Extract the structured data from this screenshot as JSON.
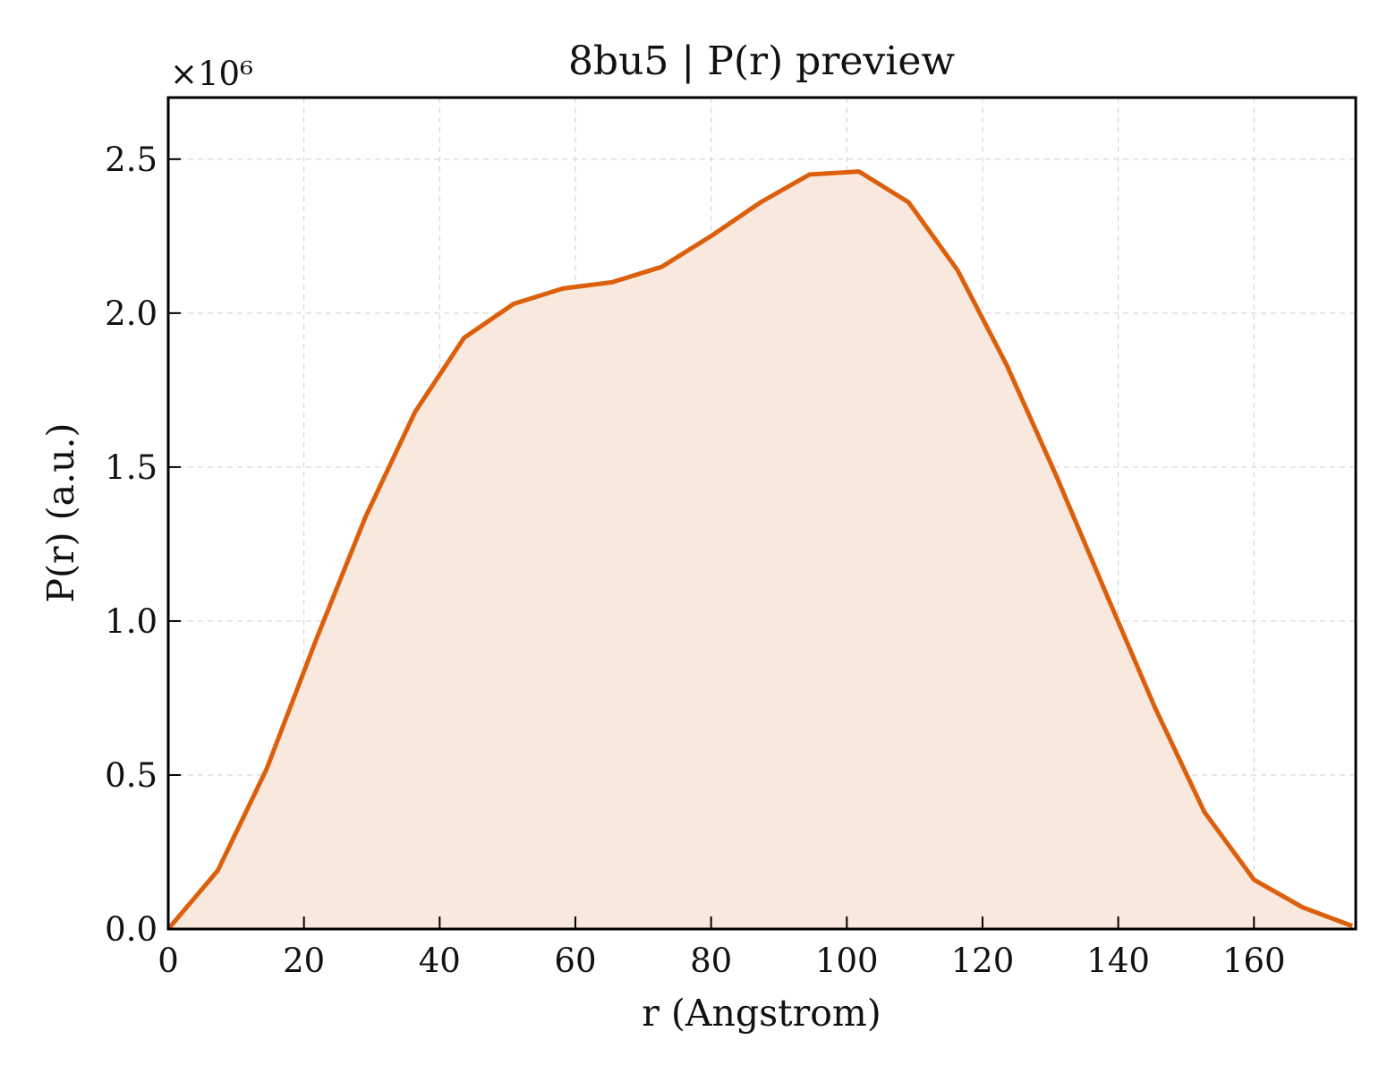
{
  "chart_data": {
    "type": "area",
    "title": "8bu5 | P(r) preview",
    "xlabel": "r (Angstrom)",
    "ylabel": "P(r) (a.u.)",
    "y_offset_label": "×10⁶",
    "y_scale_factor": 1000000,
    "xlim": [
      0,
      175
    ],
    "ylim": [
      0,
      2.7
    ],
    "x_ticks": [
      0,
      20,
      40,
      60,
      80,
      100,
      120,
      140,
      160
    ],
    "x_tick_labels": [
      "0",
      "20",
      "40",
      "60",
      "80",
      "100",
      "120",
      "140",
      "160"
    ],
    "y_ticks": [
      0.0,
      0.5,
      1.0,
      1.5,
      2.0,
      2.5
    ],
    "y_tick_labels": [
      "0.0",
      "0.5",
      "1.0",
      "1.5",
      "2.0",
      "2.5"
    ],
    "grid": true,
    "x": [
      0,
      7.3,
      14.5,
      21.8,
      29.1,
      36.4,
      43.6,
      50.9,
      58.2,
      65.4,
      72.7,
      80.0,
      87.3,
      94.5,
      101.8,
      109.1,
      116.3,
      123.6,
      130.9,
      138.2,
      145.4,
      152.7,
      160.0,
      167.2,
      174.5
    ],
    "y": [
      0.0,
      0.19,
      0.52,
      0.94,
      1.34,
      1.68,
      1.92,
      2.03,
      2.08,
      2.1,
      2.15,
      2.25,
      2.36,
      2.45,
      2.46,
      2.36,
      2.14,
      1.83,
      1.47,
      1.09,
      0.72,
      0.38,
      0.16,
      0.07,
      0.01
    ],
    "line_color": "#dc5f0b",
    "fill_color": "#f8e8dd"
  }
}
